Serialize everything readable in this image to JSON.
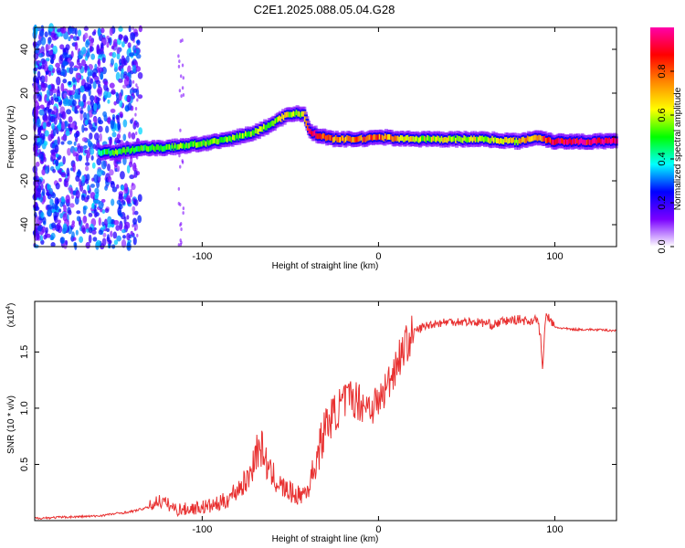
{
  "title": "C2E1.2025.088.05.04.G28",
  "chart_data": [
    {
      "type": "heatmap",
      "xlabel": "Height of straight line (km)",
      "ylabel": "Frequency (Hz)",
      "xlim": [
        -195,
        135
      ],
      "ylim": [
        -50,
        50
      ],
      "xticks": [
        -100,
        0,
        100
      ],
      "xtick_labels": [
        "-100",
        "0",
        "100"
      ],
      "yticks": [
        -40,
        -20,
        0,
        20,
        40
      ],
      "ytick_labels": [
        "-40",
        "-20",
        "0",
        "20",
        "40"
      ],
      "colorbar": {
        "label": "Normalized spectral amplitude",
        "range": [
          0,
          1
        ],
        "ticks": [
          0.0,
          0.2,
          0.4,
          0.6,
          0.8
        ],
        "tick_labels": [
          "0.0",
          "0.2",
          "0.4",
          "0.6",
          "0.8"
        ],
        "colors": [
          "#ffffff",
          "#7a00ff",
          "#0000ff",
          "#00ffff",
          "#00ff00",
          "#ffff00",
          "#ff8800",
          "#ff0000",
          "#ff00aa"
        ]
      },
      "trace": {
        "x": [
          -158,
          -150,
          -140,
          -130,
          -120,
          -110,
          -100,
          -90,
          -80,
          -70,
          -60,
          -52,
          -46,
          -42,
          -39,
          -35,
          -30,
          -25,
          -20,
          -10,
          0,
          20,
          40,
          60,
          80,
          90,
          100,
          120,
          135
        ],
        "y": [
          -7,
          -7,
          -6,
          -5,
          -5,
          -4,
          -3,
          -2,
          0,
          2,
          6,
          10,
          11,
          10,
          3,
          1,
          0,
          -1,
          -1,
          -1,
          0,
          -1,
          -1,
          -1,
          -2,
          0,
          -2,
          -2,
          -2
        ],
        "amplitude": [
          0.45,
          0.5,
          0.5,
          0.5,
          0.5,
          0.55,
          0.55,
          0.55,
          0.55,
          0.55,
          0.55,
          0.6,
          0.55,
          0.6,
          0.9,
          0.9,
          0.8,
          0.75,
          0.75,
          0.8,
          0.8,
          0.6,
          0.6,
          0.6,
          0.65,
          0.7,
          0.95,
          0.95,
          0.95
        ]
      }
    },
    {
      "type": "line",
      "xlabel": "Height of straight line (km)",
      "ylabel": "SNR (10 * v/v)",
      "y_multiplier_label": "(x10",
      "y_multiplier_exp": "4",
      "xlim": [
        -195,
        135
      ],
      "ylim": [
        0,
        1.95
      ],
      "xticks": [
        -100,
        0,
        100
      ],
      "xtick_labels": [
        "-100",
        "0",
        "100"
      ],
      "yticks": [
        0.5,
        1.0,
        1.5
      ],
      "ytick_labels": [
        "0.5",
        "1.0",
        "1.5"
      ],
      "series": [
        {
          "name": "SNR",
          "color": "#e83030",
          "x": [
            -195,
            -180,
            -160,
            -150,
            -140,
            -130,
            -125,
            -120,
            -115,
            -110,
            -100,
            -95,
            -90,
            -85,
            -80,
            -75,
            -72,
            -70,
            -67,
            -65,
            -62,
            -60,
            -55,
            -50,
            -45,
            -40,
            -35,
            -30,
            -25,
            -20,
            -15,
            -10,
            -5,
            0,
            5,
            10,
            15,
            20,
            25,
            30,
            40,
            50,
            60,
            65,
            70,
            75,
            80,
            85,
            90,
            92,
            93,
            95,
            100,
            110,
            120,
            135
          ],
          "y": [
            0.02,
            0.03,
            0.04,
            0.06,
            0.08,
            0.12,
            0.18,
            0.15,
            0.1,
            0.1,
            0.12,
            0.13,
            0.15,
            0.2,
            0.28,
            0.35,
            0.45,
            0.6,
            0.65,
            0.6,
            0.42,
            0.4,
            0.3,
            0.25,
            0.22,
            0.28,
            0.55,
            0.85,
            0.95,
            1.05,
            1.1,
            1.05,
            1.02,
            1.05,
            1.2,
            1.4,
            1.55,
            1.68,
            1.72,
            1.75,
            1.77,
            1.77,
            1.76,
            1.74,
            1.77,
            1.78,
            1.79,
            1.77,
            1.8,
            1.62,
            1.35,
            1.84,
            1.72,
            1.7,
            1.7,
            1.69
          ]
        }
      ]
    }
  ]
}
